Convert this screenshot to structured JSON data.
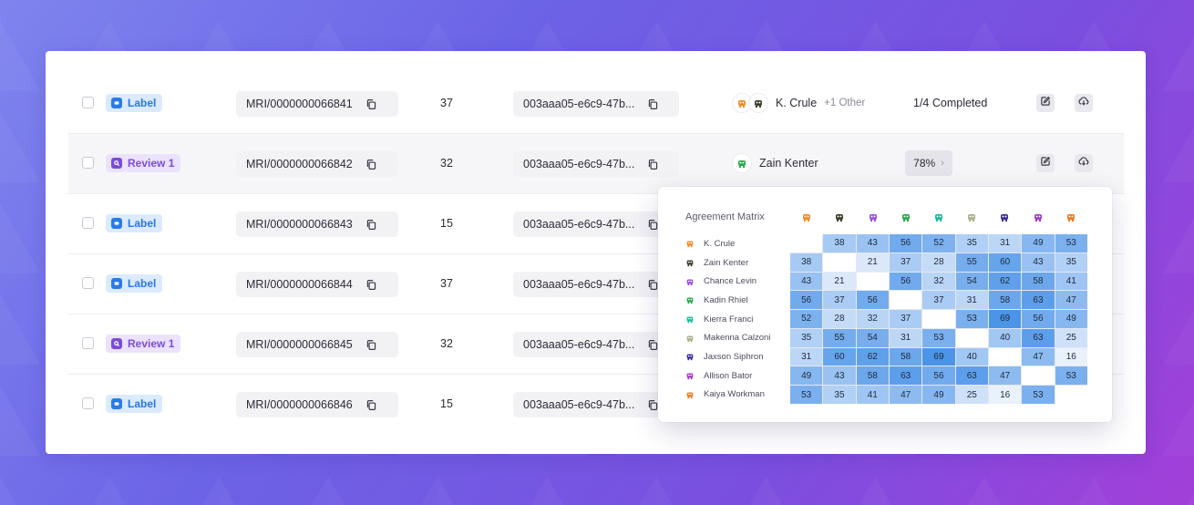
{
  "rows": [
    {
      "tag_type": "label",
      "tag": "Label",
      "mri": "MRI/0000000066841",
      "count": "37",
      "uuid": "003aaa05-e6c9-47b...",
      "user": "K. Crule",
      "other": "+1 Other",
      "status": "1/4 Completed",
      "progress": ""
    },
    {
      "tag_type": "review",
      "tag": "Review 1",
      "mri": "MRI/0000000066842",
      "count": "32",
      "uuid": "003aaa05-e6c9-47b...",
      "user": "Zain Kenter",
      "other": "",
      "status": "",
      "progress": "78%"
    },
    {
      "tag_type": "label",
      "tag": "Label",
      "mri": "MRI/0000000066843",
      "count": "15",
      "uuid": "003aaa05-e6c9-47b...",
      "user": "",
      "other": "",
      "status": "",
      "progress": ""
    },
    {
      "tag_type": "label",
      "tag": "Label",
      "mri": "MRI/0000000066844",
      "count": "37",
      "uuid": "003aaa05-e6c9-47b...",
      "user": "",
      "other": "",
      "status": "",
      "progress": ""
    },
    {
      "tag_type": "review",
      "tag": "Review 1",
      "mri": "MRI/0000000066845",
      "count": "32",
      "uuid": "003aaa05-e6c9-47b...",
      "user": "",
      "other": "",
      "status": "",
      "progress": ""
    },
    {
      "tag_type": "label",
      "tag": "Label",
      "mri": "MRI/0000000066846",
      "count": "15",
      "uuid": "003aaa05-e6c9-47b...",
      "user": "",
      "other": "",
      "status": "",
      "progress": ""
    }
  ],
  "matrix": {
    "title": "Agreement Matrix",
    "annotators": [
      {
        "name": "K. Crule",
        "color": "#f08a24"
      },
      {
        "name": "Zain Kenter",
        "color": "#3c3c2a"
      },
      {
        "name": "Chance Levin",
        "color": "#9b4fe0"
      },
      {
        "name": "Kadin Rhiel",
        "color": "#2aa84a"
      },
      {
        "name": "Kierra Franci",
        "color": "#18b89a"
      },
      {
        "name": "Makenna Calzoni",
        "color": "#a8b088"
      },
      {
        "name": "Jaxson Siphron",
        "color": "#3a2a9a"
      },
      {
        "name": "Allison Bator",
        "color": "#a03ac0"
      },
      {
        "name": "Kaiya Workman",
        "color": "#ee7a20"
      }
    ],
    "values": [
      [
        null,
        38,
        43,
        56,
        52,
        35,
        31,
        49,
        53
      ],
      [
        38,
        null,
        21,
        37,
        28,
        55,
        60,
        43,
        35
      ],
      [
        43,
        21,
        null,
        56,
        32,
        54,
        62,
        58,
        41
      ],
      [
        56,
        37,
        56,
        null,
        37,
        31,
        58,
        63,
        47
      ],
      [
        52,
        28,
        32,
        37,
        null,
        53,
        69,
        56,
        49
      ],
      [
        35,
        55,
        54,
        31,
        53,
        null,
        40,
        63,
        25
      ],
      [
        31,
        60,
        62,
        58,
        69,
        40,
        null,
        47,
        16
      ],
      [
        49,
        43,
        58,
        63,
        56,
        63,
        47,
        null,
        53
      ],
      [
        53,
        35,
        41,
        47,
        49,
        25,
        16,
        53,
        null
      ]
    ]
  },
  "icons": {
    "tag_label": "label-square-icon",
    "tag_review": "search-square-icon",
    "copy": "copy-icon",
    "edit": "edit-icon",
    "download": "cloud-download-icon",
    "chevron": "›"
  }
}
